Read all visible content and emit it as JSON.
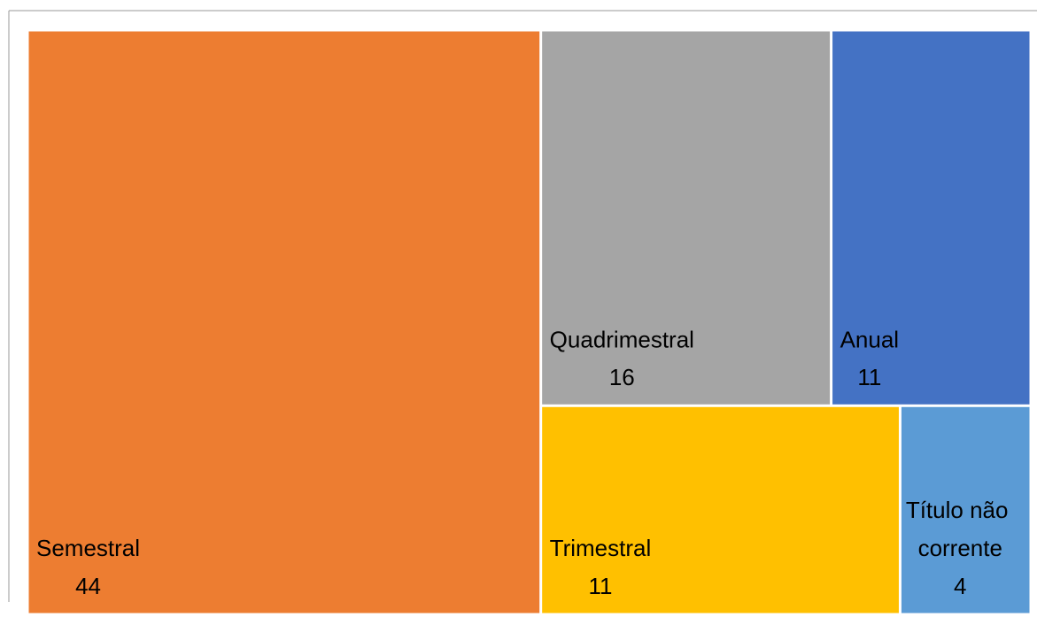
{
  "chart_data": {
    "type": "treemap",
    "categories": [
      "Semestral",
      "Quadrimestral",
      "Anual",
      "Trimestral",
      "Título não corrente"
    ],
    "values": [
      44,
      16,
      11,
      11,
      4
    ],
    "colors": [
      "#ED7D31",
      "#A5A5A5",
      "#4472C4",
      "#FFC000",
      "#5B9BD5"
    ]
  }
}
